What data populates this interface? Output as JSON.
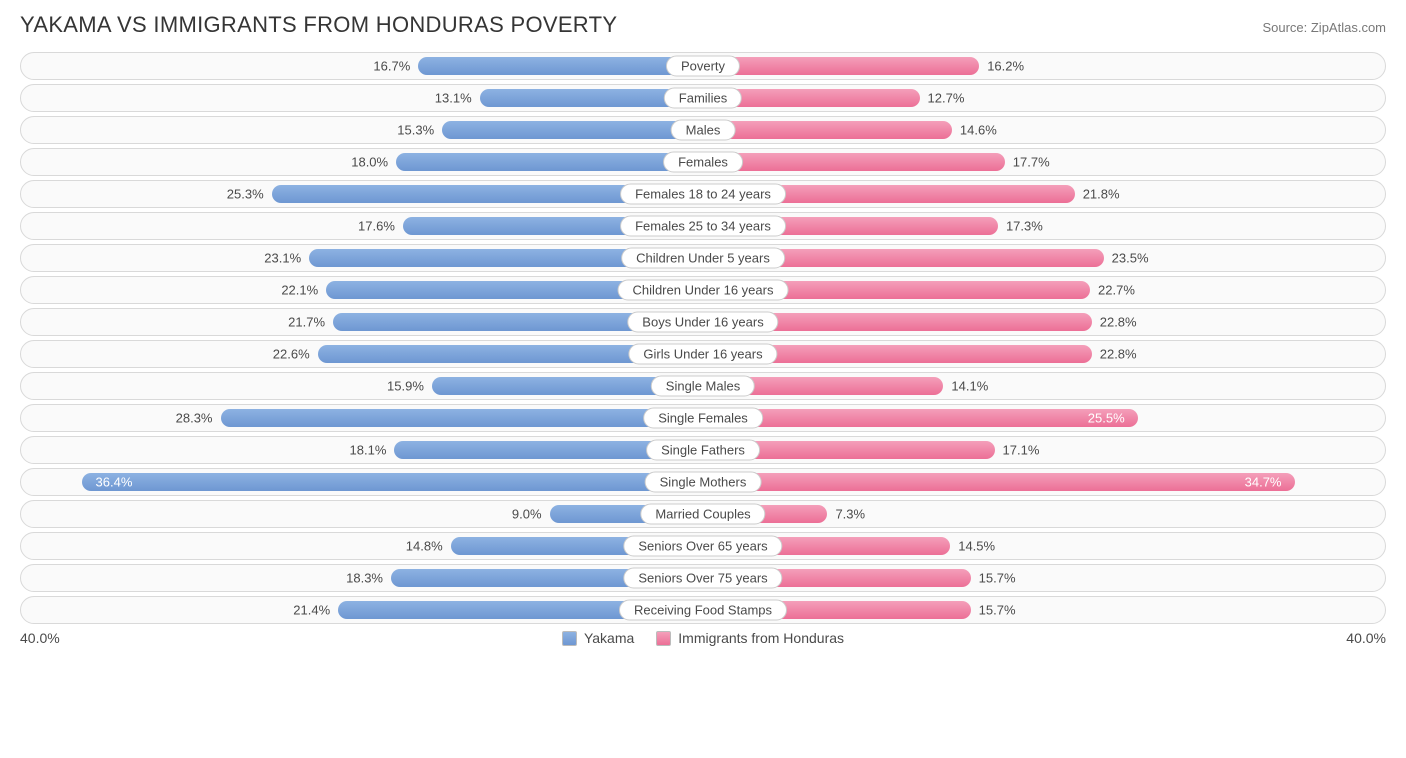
{
  "title": "YAKAMA VS IMMIGRANTS FROM HONDURAS POVERTY",
  "source": "Source: ZipAtlas.com",
  "chart": {
    "type": "diverging-bar",
    "max": 40.0,
    "axis_label": "40.0%",
    "colors": {
      "left": "#6e97d2",
      "right": "#ec6f96",
      "track_border": "#d9d9d9",
      "track_bg": "#fafafa",
      "text": "#4a4a4a"
    },
    "legend": [
      {
        "label": "Yakama",
        "color": "blue"
      },
      {
        "label": "Immigrants from Honduras",
        "color": "pink"
      }
    ],
    "rows": [
      {
        "cat": "Poverty",
        "l": 16.7,
        "r": 16.2
      },
      {
        "cat": "Families",
        "l": 13.1,
        "r": 12.7
      },
      {
        "cat": "Males",
        "l": 15.3,
        "r": 14.6
      },
      {
        "cat": "Females",
        "l": 18.0,
        "r": 17.7
      },
      {
        "cat": "Females 18 to 24 years",
        "l": 25.3,
        "r": 21.8
      },
      {
        "cat": "Females 25 to 34 years",
        "l": 17.6,
        "r": 17.3
      },
      {
        "cat": "Children Under 5 years",
        "l": 23.1,
        "r": 23.5
      },
      {
        "cat": "Children Under 16 years",
        "l": 22.1,
        "r": 22.7
      },
      {
        "cat": "Boys Under 16 years",
        "l": 21.7,
        "r": 22.8
      },
      {
        "cat": "Girls Under 16 years",
        "l": 22.6,
        "r": 22.8
      },
      {
        "cat": "Single Males",
        "l": 15.9,
        "r": 14.1
      },
      {
        "cat": "Single Females",
        "l": 28.3,
        "r": 25.5,
        "r_inside": true
      },
      {
        "cat": "Single Fathers",
        "l": 18.1,
        "r": 17.1
      },
      {
        "cat": "Single Mothers",
        "l": 36.4,
        "r": 34.7,
        "l_inside": true,
        "r_inside": true
      },
      {
        "cat": "Married Couples",
        "l": 9.0,
        "r": 7.3
      },
      {
        "cat": "Seniors Over 65 years",
        "l": 14.8,
        "r": 14.5
      },
      {
        "cat": "Seniors Over 75 years",
        "l": 18.3,
        "r": 15.7
      },
      {
        "cat": "Receiving Food Stamps",
        "l": 21.4,
        "r": 15.7
      }
    ]
  }
}
